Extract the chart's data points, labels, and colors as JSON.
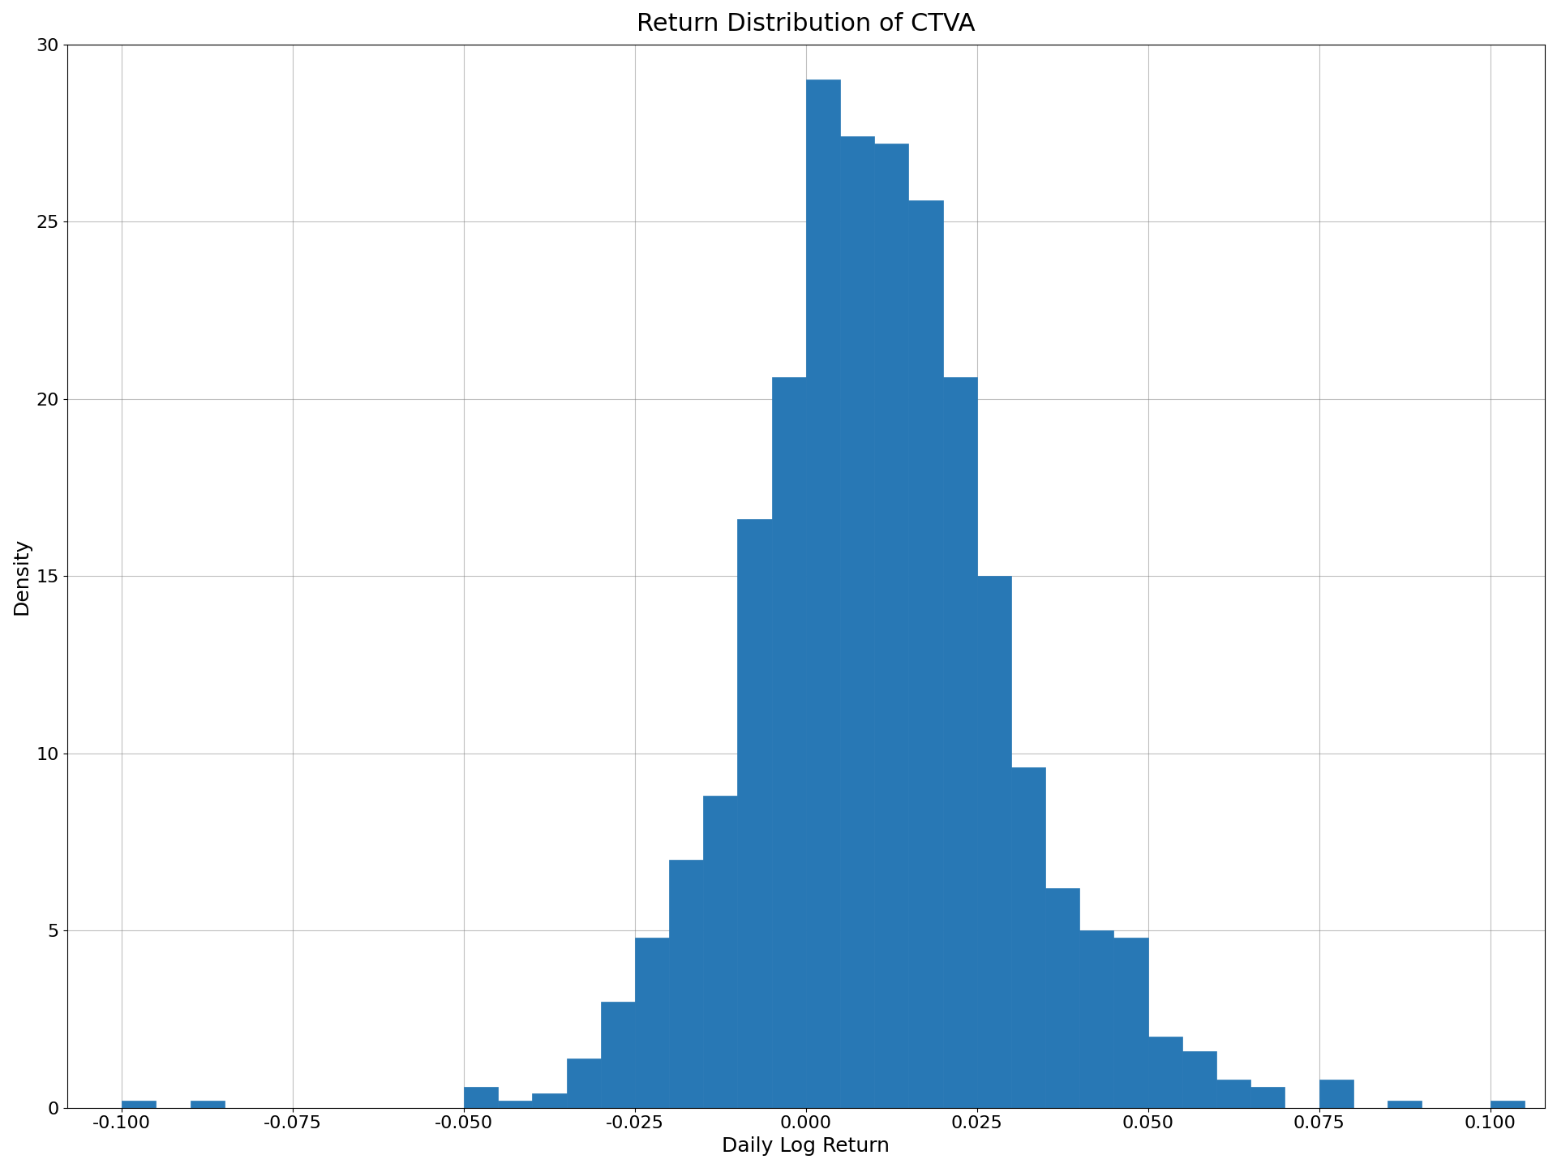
{
  "title": "Return Distribution of CTVA",
  "xlabel": "Daily Log Return",
  "ylabel": "Density",
  "bar_color": "#2878b5",
  "bar_edgecolor": "#2878b5",
  "xlim": [
    -0.108,
    0.108
  ],
  "ylim": [
    0,
    30
  ],
  "yticks": [
    0,
    5,
    10,
    15,
    20,
    25,
    30
  ],
  "xticks": [
    -0.1,
    -0.075,
    -0.05,
    -0.025,
    0.0,
    0.025,
    0.05,
    0.075,
    0.1
  ],
  "grid": true,
  "figsize": [
    19.2,
    14.4
  ],
  "dpi": 100,
  "title_fontsize": 22,
  "label_fontsize": 18,
  "tick_fontsize": 16,
  "bin_width": 0.005,
  "bin_centers": [
    -0.1025,
    -0.0975,
    -0.0925,
    -0.0875,
    -0.0825,
    -0.0775,
    -0.0725,
    -0.0675,
    -0.0625,
    -0.0575,
    -0.0525,
    -0.0475,
    -0.0425,
    -0.0375,
    -0.0325,
    -0.0275,
    -0.0225,
    -0.0175,
    -0.0125,
    -0.0075,
    -0.0025,
    0.0025,
    0.0075,
    0.0125,
    0.0175,
    0.0225,
    0.0275,
    0.0325,
    0.0375,
    0.0425,
    0.0475,
    0.0525,
    0.0575,
    0.0625,
    0.0675,
    0.0725,
    0.0775,
    0.0825,
    0.0875,
    0.0925,
    0.0975,
    0.1025
  ],
  "bin_heights": [
    0.0,
    0.2,
    0.0,
    0.2,
    0.0,
    0.0,
    0.0,
    0.0,
    0.0,
    0.0,
    0.0,
    0.6,
    0.2,
    0.4,
    1.4,
    3.0,
    4.8,
    7.0,
    8.8,
    16.6,
    20.6,
    29.0,
    27.4,
    27.2,
    25.6,
    20.6,
    15.0,
    9.6,
    6.2,
    5.0,
    4.8,
    2.0,
    1.6,
    0.8,
    0.6,
    0.0,
    0.8,
    0.0,
    0.2,
    0.0,
    0.0,
    0.2
  ]
}
